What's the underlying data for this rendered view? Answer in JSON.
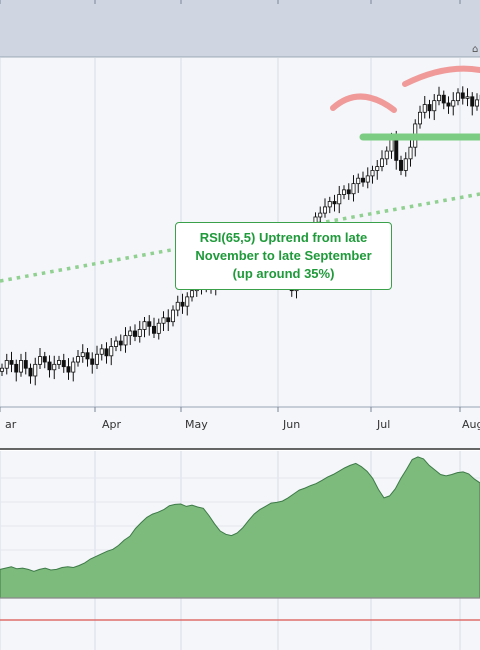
{
  "chart_data": [
    {
      "type": "candlestick",
      "title": "",
      "xlabel": "",
      "ylabel": "",
      "x_ticks": [
        "ar",
        "Apr",
        "May",
        "Jun",
        "Jul",
        "Aug"
      ],
      "grid": true,
      "annotation": {
        "lines": [
          "RSI(65,5) Uptrend from late",
          "November to late September",
          "(up around 35%)"
        ]
      },
      "series": [
        {
          "closes": [
            100,
            101,
            100.5,
            99.5,
            101,
            100,
            99,
            100.5,
            101.5,
            100.8,
            99.8,
            100.5,
            101,
            100.2,
            99.5,
            100.8,
            101.5,
            102,
            101.2,
            100.5,
            101.8,
            102.5,
            101.6,
            102.8,
            103.5,
            103,
            104.2,
            104.8,
            104.1,
            105,
            106,
            105.4,
            104.5,
            105.8,
            106.5,
            106,
            107.5,
            108.5,
            108,
            109.2,
            110,
            110.5,
            111.5,
            111,
            110.2,
            111.8,
            112.4,
            111.6,
            112.9,
            113.5,
            113,
            114,
            113.5,
            114.2,
            113.4,
            112.9,
            114.5,
            115.5,
            115,
            113.5,
            111.2,
            110,
            111.5,
            113,
            114.8,
            117.5,
            119.5,
            120,
            120.8,
            121.5,
            121.2,
            122.4,
            123,
            122.5,
            123.8,
            124.5,
            124,
            124.8,
            125.5,
            126,
            127,
            128,
            129.5,
            126.8,
            125.5,
            127,
            128.5,
            131.5,
            133,
            134,
            133.2,
            134.5,
            135.2,
            134.2,
            133.8,
            134.5,
            135.5,
            134.8,
            135,
            133.8,
            134.6,
            135.2
          ]
        }
      ]
    },
    {
      "type": "area",
      "title": "",
      "series": [
        {
          "values": [
            22,
            23,
            24,
            22.5,
            23,
            22,
            20.5,
            22,
            23,
            21.5,
            22,
            23.5,
            24,
            23.5,
            25,
            27,
            30,
            32,
            34,
            36,
            37.5,
            40.5,
            44.5,
            47.5,
            53.5,
            58,
            62,
            64.5,
            66,
            68,
            71,
            72,
            72.3,
            70.5,
            71.5,
            70,
            69,
            63.5,
            57,
            51.5,
            49,
            48,
            50,
            54,
            59.5,
            64.5,
            68,
            70.5,
            73,
            73.5,
            74.5,
            77,
            80,
            83,
            84.5,
            86.5,
            88,
            90.5,
            93,
            95,
            97.5,
            100,
            102,
            103.5,
            101,
            97.5,
            92,
            83.5,
            77,
            78.5,
            84,
            92,
            99,
            106.5,
            108.5,
            107,
            102,
            98.5,
            95,
            94,
            95,
            96.5,
            97,
            95.5,
            91.5,
            88.5
          ]
        }
      ]
    }
  ]
}
